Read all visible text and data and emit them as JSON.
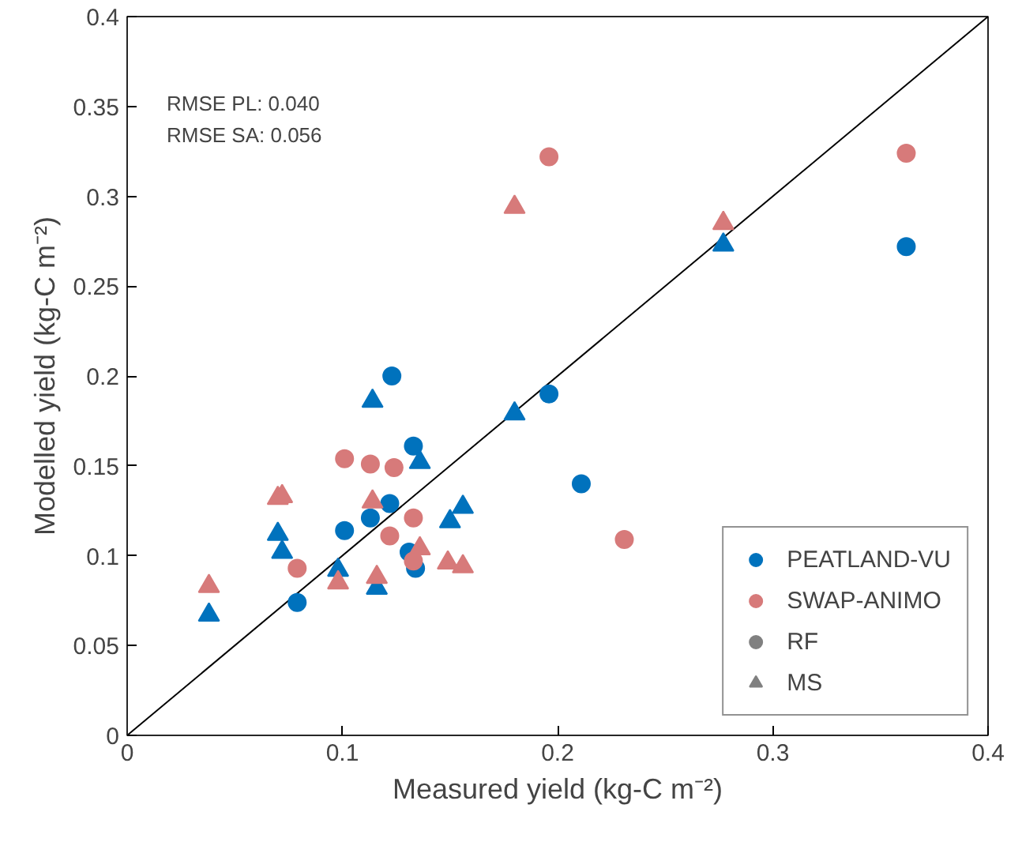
{
  "chart_data": {
    "type": "scatter",
    "xlabel": "Measured yield (kg-C m⁻²)",
    "ylabel": "Modelled yield (kg-C m⁻²)",
    "annotations": [
      "RMSE PL: 0.040",
      "RMSE SA: 0.056"
    ],
    "xlim": [
      0,
      0.4
    ],
    "ylim": [
      0,
      0.4
    ],
    "xticks": [
      0,
      0.1,
      0.2,
      0.3,
      0.4
    ],
    "yticks": [
      0,
      0.05,
      0.1,
      0.15,
      0.2,
      0.25,
      0.3,
      0.35,
      0.4
    ],
    "grid": false,
    "legend": "bottom right",
    "series": [
      {
        "type": "line",
        "color": "#000000",
        "x": [
          0,
          0.4
        ],
        "values": [
          0,
          0.4
        ]
      },
      {
        "name": "PEATLAND-VU",
        "color": "#0072bd",
        "marker": "circle",
        "x": [
          0.123,
          0.133,
          0.122,
          0.113,
          0.101,
          0.131,
          0.134,
          0.079,
          0.196,
          0.211,
          0.362
        ],
        "values": [
          0.2,
          0.161,
          0.129,
          0.121,
          0.114,
          0.102,
          0.093,
          0.074,
          0.19,
          0.14,
          0.272
        ]
      },
      {
        "name": "SWAP-ANIMO",
        "color": "#d77a7a",
        "marker": "circle",
        "x": [
          0.101,
          0.113,
          0.124,
          0.133,
          0.122,
          0.079,
          0.133,
          0.196,
          0.362,
          0.231
        ],
        "values": [
          0.154,
          0.151,
          0.149,
          0.121,
          0.111,
          0.093,
          0.097,
          0.322,
          0.324,
          0.109
        ]
      },
      {
        "color": "#0072bd",
        "marker": "triangle",
        "x": [
          0.114,
          0.136,
          0.15,
          0.156,
          0.07,
          0.072,
          0.098,
          0.116,
          0.038,
          0.18,
          0.277
        ],
        "values": [
          0.186,
          0.152,
          0.119,
          0.127,
          0.112,
          0.102,
          0.092,
          0.082,
          0.067,
          0.179,
          0.273
        ]
      },
      {
        "color": "#d77a7a",
        "marker": "triangle",
        "x": [
          0.07,
          0.072,
          0.114,
          0.136,
          0.149,
          0.156,
          0.098,
          0.116,
          0.038,
          0.18,
          0.277
        ],
        "values": [
          0.132,
          0.133,
          0.13,
          0.104,
          0.096,
          0.094,
          0.085,
          0.088,
          0.083,
          0.294,
          0.285
        ]
      },
      {
        "name": "RF",
        "color": "#808080",
        "marker": "circle"
      },
      {
        "name": "MS",
        "color": "#808080",
        "marker": "triangle"
      }
    ]
  }
}
